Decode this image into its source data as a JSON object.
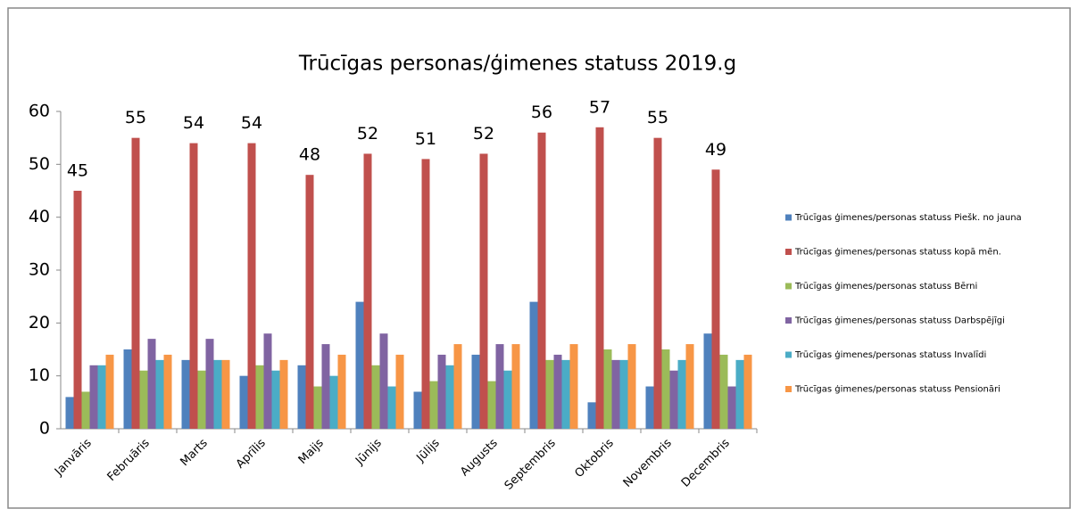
{
  "chart_data": {
    "type": "bar",
    "title": "Trūcīgas  personas/ģimenes statuss 2019.g",
    "categories": [
      "Janvāris",
      "Februāris",
      "Marts",
      "Aprīlis",
      "Maijs",
      "Jūnijs",
      "Jūlijs",
      "Augusts",
      "Septembris",
      "Oktobris",
      "Novembris",
      "Decembris"
    ],
    "series": [
      {
        "name": "Trūcīgas ģimenes/personas statuss Piešk. no jauna",
        "color": "#4f81bd",
        "values": [
          6,
          15,
          13,
          10,
          12,
          24,
          7,
          14,
          24,
          5,
          8,
          18
        ]
      },
      {
        "name": "Trūcīgas ģimenes/personas statuss kopā mēn.",
        "color": "#c0504d",
        "values": [
          45,
          55,
          54,
          54,
          48,
          52,
          51,
          52,
          56,
          57,
          55,
          49
        ],
        "show_labels": true
      },
      {
        "name": "Trūcīgas ģimenes/personas statuss Bērni",
        "color": "#9bbb59",
        "values": [
          7,
          11,
          11,
          12,
          8,
          12,
          9,
          9,
          13,
          15,
          15,
          14
        ]
      },
      {
        "name": "Trūcīgas ģimenes/personas statuss Darbspējīgi",
        "color": "#8064a2",
        "values": [
          12,
          17,
          17,
          18,
          16,
          18,
          14,
          16,
          14,
          13,
          11,
          8
        ]
      },
      {
        "name": "Trūcīgas ģimenes/personas statuss Invalīdi",
        "color": "#4bacc6",
        "values": [
          12,
          13,
          13,
          11,
          10,
          8,
          12,
          11,
          13,
          13,
          13,
          13
        ]
      },
      {
        "name": "Trūcīgas ģimenes/personas statuss Pensionāri",
        "color": "#f79646",
        "values": [
          14,
          14,
          13,
          13,
          14,
          14,
          16,
          16,
          16,
          16,
          16,
          14
        ]
      }
    ],
    "ylim": [
      0,
      60
    ],
    "yticks": [
      0,
      10,
      20,
      30,
      40,
      50,
      60
    ],
    "grid": false,
    "legend": "right"
  }
}
